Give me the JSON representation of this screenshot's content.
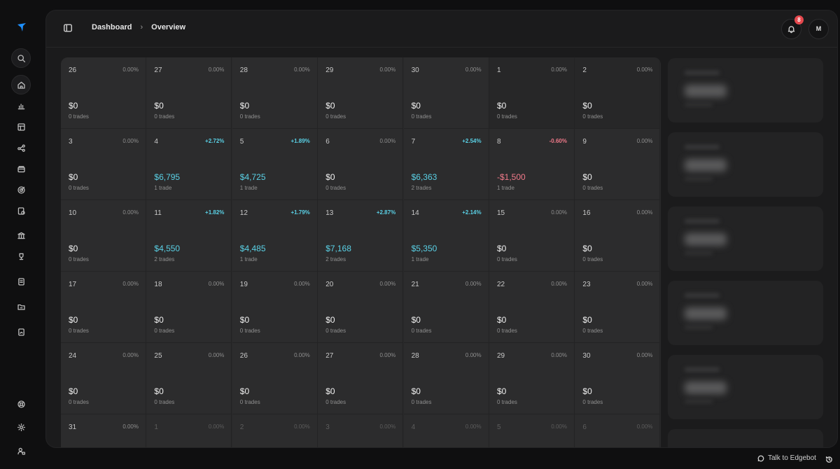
{
  "header": {
    "breadcrumb": [
      "Dashboard",
      "Overview"
    ],
    "notification_count": "8",
    "avatar_initial": "M"
  },
  "sidebar": {
    "top_items": [
      "search-icon",
      "home-icon",
      "bar-chart-icon",
      "table-icon",
      "share-nodes-icon",
      "wallet-icon",
      "target-icon",
      "badge-check-icon",
      "bank-icon",
      "trophy-icon",
      "notebook-icon",
      "folder-icon",
      "file-chart-icon"
    ],
    "bottom_items": [
      "lifebuoy-icon",
      "gear-icon",
      "user-lock-icon"
    ]
  },
  "calendar": {
    "rows": [
      [
        {
          "day": "26",
          "pct": "0.00%",
          "pnl": "$0",
          "trades": "0 trades",
          "tone": "flat"
        },
        {
          "day": "27",
          "pct": "0.00%",
          "pnl": "$0",
          "trades": "0 trades",
          "tone": "flat"
        },
        {
          "day": "28",
          "pct": "0.00%",
          "pnl": "$0",
          "trades": "0 trades",
          "tone": "flat"
        },
        {
          "day": "29",
          "pct": "0.00%",
          "pnl": "$0",
          "trades": "0 trades",
          "tone": "flat"
        },
        {
          "day": "30",
          "pct": "0.00%",
          "pnl": "$0",
          "trades": "0 trades",
          "tone": "flat"
        },
        {
          "day": "1",
          "pct": "0.00%",
          "pnl": "$0",
          "trades": "0 trades",
          "tone": "flat"
        },
        {
          "day": "2",
          "pct": "0.00%",
          "pnl": "$0",
          "trades": "0 trades",
          "tone": "flat"
        }
      ],
      [
        {
          "day": "3",
          "pct": "0.00%",
          "pnl": "$0",
          "trades": "0 trades",
          "tone": "flat"
        },
        {
          "day": "4",
          "pct": "+2.72%",
          "pnl": "$6,795",
          "trades": "1 trade",
          "tone": "pos"
        },
        {
          "day": "5",
          "pct": "+1.89%",
          "pnl": "$4,725",
          "trades": "1 trade",
          "tone": "pos"
        },
        {
          "day": "6",
          "pct": "0.00%",
          "pnl": "$0",
          "trades": "0 trades",
          "tone": "flat"
        },
        {
          "day": "7",
          "pct": "+2.54%",
          "pnl": "$6,363",
          "trades": "2 trades",
          "tone": "pos"
        },
        {
          "day": "8",
          "pct": "-0.60%",
          "pnl": "-$1,500",
          "trades": "1 trade",
          "tone": "neg"
        },
        {
          "day": "9",
          "pct": "0.00%",
          "pnl": "$0",
          "trades": "0 trades",
          "tone": "flat"
        }
      ],
      [
        {
          "day": "10",
          "pct": "0.00%",
          "pnl": "$0",
          "trades": "0 trades",
          "tone": "flat"
        },
        {
          "day": "11",
          "pct": "+1.82%",
          "pnl": "$4,550",
          "trades": "2 trades",
          "tone": "pos"
        },
        {
          "day": "12",
          "pct": "+1.79%",
          "pnl": "$4,485",
          "trades": "1 trade",
          "tone": "pos"
        },
        {
          "day": "13",
          "pct": "+2.87%",
          "pnl": "$7,168",
          "trades": "2 trades",
          "tone": "pos"
        },
        {
          "day": "14",
          "pct": "+2.14%",
          "pnl": "$5,350",
          "trades": "1 trade",
          "tone": "pos"
        },
        {
          "day": "15",
          "pct": "0.00%",
          "pnl": "$0",
          "trades": "0 trades",
          "tone": "flat"
        },
        {
          "day": "16",
          "pct": "0.00%",
          "pnl": "$0",
          "trades": "0 trades",
          "tone": "flat"
        }
      ],
      [
        {
          "day": "17",
          "pct": "0.00%",
          "pnl": "$0",
          "trades": "0 trades",
          "tone": "flat"
        },
        {
          "day": "18",
          "pct": "0.00%",
          "pnl": "$0",
          "trades": "0 trades",
          "tone": "flat"
        },
        {
          "day": "19",
          "pct": "0.00%",
          "pnl": "$0",
          "trades": "0 trades",
          "tone": "flat"
        },
        {
          "day": "20",
          "pct": "0.00%",
          "pnl": "$0",
          "trades": "0 trades",
          "tone": "flat"
        },
        {
          "day": "21",
          "pct": "0.00%",
          "pnl": "$0",
          "trades": "0 trades",
          "tone": "flat"
        },
        {
          "day": "22",
          "pct": "0.00%",
          "pnl": "$0",
          "trades": "0 trades",
          "tone": "flat"
        },
        {
          "day": "23",
          "pct": "0.00%",
          "pnl": "$0",
          "trades": "0 trades",
          "tone": "flat"
        }
      ],
      [
        {
          "day": "24",
          "pct": "0.00%",
          "pnl": "$0",
          "trades": "0 trades",
          "tone": "flat"
        },
        {
          "day": "25",
          "pct": "0.00%",
          "pnl": "$0",
          "trades": "0 trades",
          "tone": "flat"
        },
        {
          "day": "26",
          "pct": "0.00%",
          "pnl": "$0",
          "trades": "0 trades",
          "tone": "flat"
        },
        {
          "day": "27",
          "pct": "0.00%",
          "pnl": "$0",
          "trades": "0 trades",
          "tone": "flat"
        },
        {
          "day": "28",
          "pct": "0.00%",
          "pnl": "$0",
          "trades": "0 trades",
          "tone": "flat"
        },
        {
          "day": "29",
          "pct": "0.00%",
          "pnl": "$0",
          "trades": "0 trades",
          "tone": "flat"
        },
        {
          "day": "30",
          "pct": "0.00%",
          "pnl": "$0",
          "trades": "0 trades",
          "tone": "flat"
        }
      ],
      [
        {
          "day": "31",
          "pct": "0.00%",
          "pnl": "",
          "trades": "",
          "tone": "flat"
        },
        {
          "day": "1",
          "pct": "0.00%",
          "pnl": "",
          "trades": "",
          "tone": "dim"
        },
        {
          "day": "2",
          "pct": "0.00%",
          "pnl": "",
          "trades": "",
          "tone": "dim"
        },
        {
          "day": "3",
          "pct": "0.00%",
          "pnl": "",
          "trades": "",
          "tone": "dim"
        },
        {
          "day": "4",
          "pct": "0.00%",
          "pnl": "",
          "trades": "",
          "tone": "dim"
        },
        {
          "day": "5",
          "pct": "0.00%",
          "pnl": "",
          "trades": "",
          "tone": "dim"
        },
        {
          "day": "6",
          "pct": "0.00%",
          "pnl": "",
          "trades": "",
          "tone": "dim"
        }
      ]
    ]
  },
  "footer": {
    "edgebot_label": "Talk to Edgebot"
  },
  "colors": {
    "positive": "#5ad1e6",
    "negative": "#f17a8a",
    "badge": "#e5484d",
    "accent_logo": "#1e90ff"
  }
}
